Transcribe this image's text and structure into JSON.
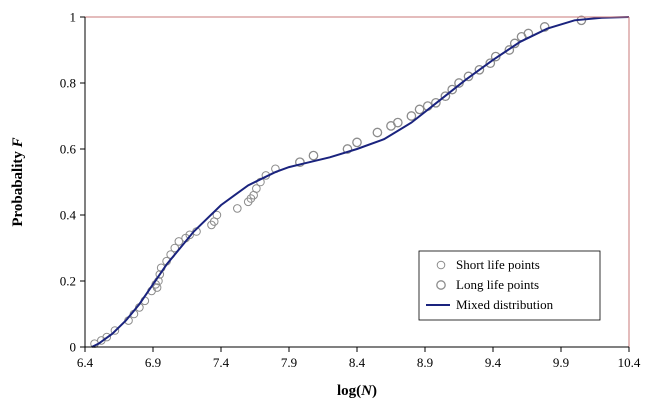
{
  "chart_data": {
    "type": "scatter",
    "title": "",
    "xlabel_prefix": "log(",
    "xlabel_var": "N",
    "xlabel_suffix": ")",
    "ylabel_prefix": "Probabality ",
    "ylabel_var": "F",
    "xlim": [
      6.4,
      10.4
    ],
    "ylim": [
      0,
      1
    ],
    "xticks": [
      "6.4",
      "6.9",
      "7.4",
      "7.9",
      "8.4",
      "8.9",
      "9.4",
      "9.9",
      "10.4"
    ],
    "yticks": [
      "0",
      "0.2",
      "0.4",
      "0.6",
      "0.8",
      "1"
    ],
    "grid": false,
    "legend_position": "bottom-right",
    "colors": {
      "line": "#1a237e",
      "marker_short": "#8c8c8c",
      "marker_long": "#8c8c8c",
      "frame_top_right": "#c87878"
    },
    "series": [
      {
        "name": "Short life points",
        "kind": "scatter",
        "x": [
          6.47,
          6.52,
          6.56,
          6.62,
          6.72,
          6.76,
          6.8,
          6.84,
          6.89,
          6.92,
          6.93,
          6.94,
          6.95,
          6.96,
          7.0,
          7.03,
          7.06,
          7.09,
          7.14,
          7.17,
          7.22,
          7.33,
          7.35,
          7.37,
          7.52,
          7.6,
          7.62,
          7.64,
          7.66,
          7.69,
          7.73,
          7.8
        ],
        "y": [
          0.01,
          0.02,
          0.03,
          0.05,
          0.08,
          0.1,
          0.12,
          0.14,
          0.17,
          0.19,
          0.18,
          0.2,
          0.22,
          0.24,
          0.26,
          0.28,
          0.3,
          0.32,
          0.33,
          0.34,
          0.35,
          0.37,
          0.38,
          0.4,
          0.42,
          0.44,
          0.45,
          0.46,
          0.48,
          0.5,
          0.52,
          0.54
        ]
      },
      {
        "name": "Long life points",
        "kind": "scatter",
        "x": [
          7.98,
          8.08,
          8.33,
          8.4,
          8.55,
          8.65,
          8.7,
          8.8,
          8.86,
          8.92,
          8.98,
          9.05,
          9.1,
          9.15,
          9.22,
          9.3,
          9.38,
          9.42,
          9.52,
          9.56,
          9.61,
          9.66,
          9.78,
          10.05
        ],
        "y": [
          0.56,
          0.58,
          0.6,
          0.62,
          0.65,
          0.67,
          0.68,
          0.7,
          0.72,
          0.73,
          0.74,
          0.76,
          0.78,
          0.8,
          0.82,
          0.84,
          0.86,
          0.88,
          0.9,
          0.92,
          0.94,
          0.95,
          0.97,
          0.99
        ]
      },
      {
        "name": "Mixed distribution",
        "kind": "line",
        "x": [
          6.45,
          6.5,
          6.6,
          6.7,
          6.8,
          6.9,
          7.0,
          7.1,
          7.2,
          7.3,
          7.4,
          7.5,
          7.6,
          7.7,
          7.8,
          7.9,
          8.0,
          8.2,
          8.4,
          8.6,
          8.8,
          9.0,
          9.2,
          9.4,
          9.6,
          9.8,
          10.0,
          10.2,
          10.4
        ],
        "y": [
          0.0,
          0.01,
          0.04,
          0.08,
          0.13,
          0.19,
          0.25,
          0.3,
          0.35,
          0.39,
          0.43,
          0.46,
          0.49,
          0.51,
          0.53,
          0.545,
          0.555,
          0.575,
          0.6,
          0.63,
          0.68,
          0.745,
          0.81,
          0.87,
          0.925,
          0.965,
          0.99,
          0.998,
          1.0
        ]
      }
    ]
  }
}
